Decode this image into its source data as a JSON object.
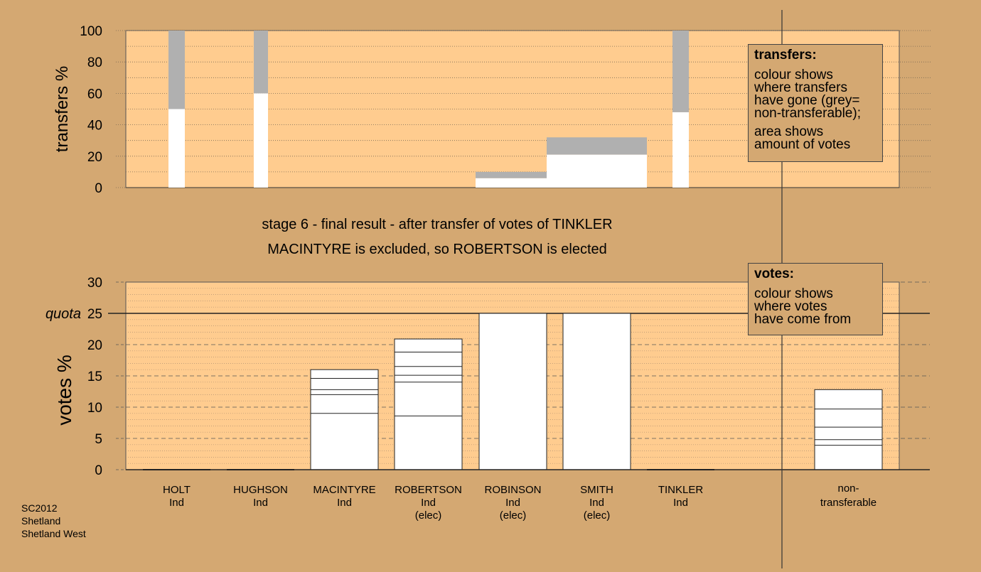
{
  "chart_data": [
    {
      "type": "bar",
      "stacked": true,
      "ylabel": "transfers %",
      "ylim": [
        0,
        100
      ],
      "yticks": [
        0,
        20,
        40,
        60,
        80,
        100
      ],
      "grid": "dotted",
      "categories": [
        "HOLT",
        "HUGHSON",
        "MACINTYRE",
        "ROBERTSON",
        "ROBINSON",
        "SMITH",
        "TINKLER"
      ],
      "series": [
        {
          "color": "#ffffff",
          "values": [
            50,
            60,
            0,
            0,
            6,
            21,
            48
          ]
        },
        {
          "color": "#b0b0b0",
          "values": [
            50,
            40,
            0,
            0,
            4,
            11,
            52
          ]
        }
      ]
    },
    {
      "type": "bar",
      "stacked": true,
      "ylabel": "votes %",
      "ylim": [
        0,
        30
      ],
      "yticks": [
        0,
        5,
        10,
        15,
        20,
        25,
        30
      ],
      "quota_value": 25,
      "quota_label": "quota",
      "grid": "dashed",
      "categories": [
        "HOLT",
        "HUGHSON",
        "MACINTYRE",
        "ROBERTSON",
        "ROBINSON",
        "SMITH",
        "TINKLER",
        "non-transferable"
      ],
      "segments": [
        [
          0
        ],
        [
          0
        ],
        [
          9,
          3,
          0.8,
          1.8,
          1.4
        ],
        [
          8.6,
          5.4,
          1.1,
          1.4,
          2.3,
          2.1
        ],
        [
          25
        ],
        [
          25
        ],
        [
          0
        ],
        [
          3.9,
          0.9,
          2.0,
          2.9,
          3.1
        ]
      ]
    }
  ],
  "candidates": [
    {
      "name": "HOLT",
      "party": "Ind",
      "status": ""
    },
    {
      "name": "HUGHSON",
      "party": "Ind",
      "status": ""
    },
    {
      "name": "MACINTYRE",
      "party": "Ind",
      "status": ""
    },
    {
      "name": "ROBERTSON",
      "party": "Ind",
      "status": "(elec)"
    },
    {
      "name": "ROBINSON",
      "party": "Ind",
      "status": "(elec)"
    },
    {
      "name": "SMITH",
      "party": "Ind",
      "status": "(elec)"
    },
    {
      "name": "TINKLER",
      "party": "Ind",
      "status": ""
    }
  ],
  "nontransferable": {
    "line1": "non-",
    "line2": "transferable"
  },
  "stage": {
    "line1": "stage 6 - final result - after transfer of votes of TINKLER",
    "line2": "MACINTYRE is excluded, so ROBERTSON is elected"
  },
  "legend_transfers": {
    "title": "transfers:",
    "para1": [
      "colour shows",
      "where transfers",
      "have gone (grey=",
      "non-transferable);"
    ],
    "para2": [
      "area shows",
      "amount of votes"
    ]
  },
  "legend_votes": {
    "title": "votes:",
    "para1": [
      "colour shows",
      "where votes",
      "have come from"
    ]
  },
  "footer": {
    "line1": "SC2012",
    "line2": "Shetland",
    "line3": "Shetland West"
  },
  "colors": {
    "background": "#d4a872",
    "plot_fill": "#ffcc8f",
    "bar": "#ffffff",
    "nontransferable": "#b0b0b0",
    "axis": "#333333"
  }
}
